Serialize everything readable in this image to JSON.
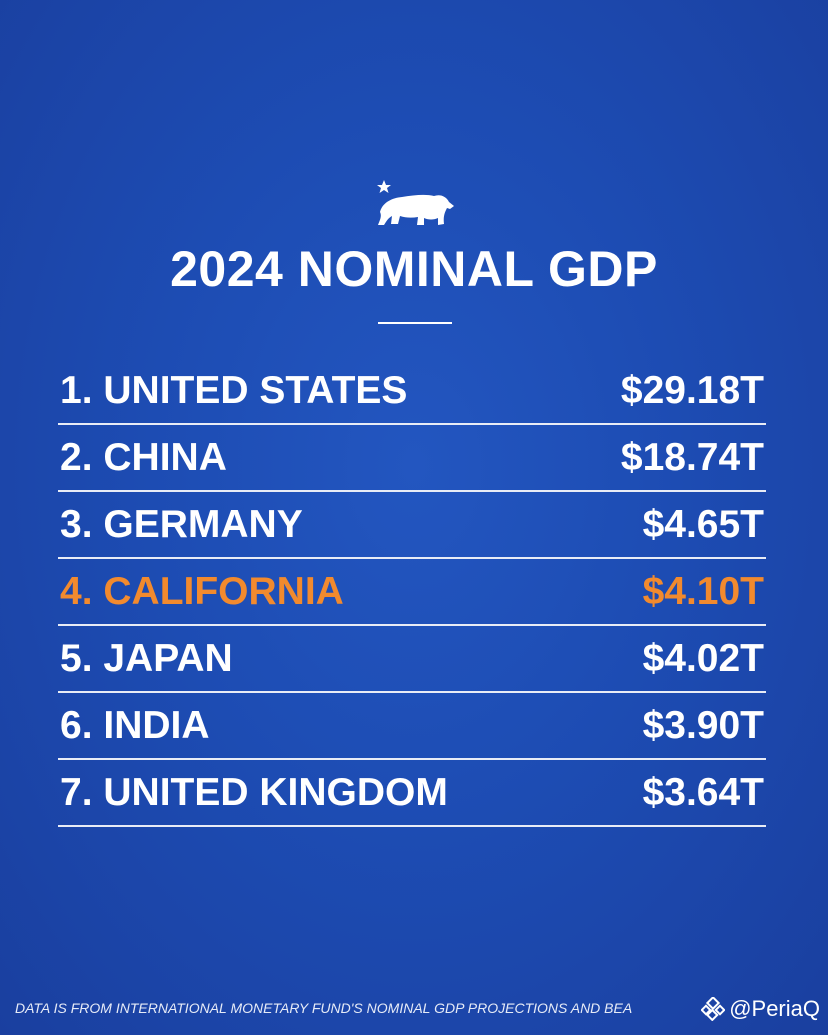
{
  "header": {
    "title": "2024 NOMINAL GDP"
  },
  "rows": [
    [
      "1. UNITED STATES",
      "$29.18T"
    ],
    [
      "2. CHINA",
      "$18.74T"
    ],
    [
      "3. GERMANY",
      "$4.65T"
    ],
    [
      "4. CALIFORNIA",
      "$4.10T"
    ],
    [
      "5. JAPAN",
      "$4.02T"
    ],
    [
      "6. INDIA",
      "$3.90T"
    ],
    [
      "7. UNITED KINGDOM",
      "$3.64T"
    ]
  ],
  "footer": {
    "source": "DATA IS FROM INTERNATIONAL MONETARY FUND'S NOMINAL GDP PROJECTIONS AND BEA",
    "watermark": "@PeriaQ"
  }
}
